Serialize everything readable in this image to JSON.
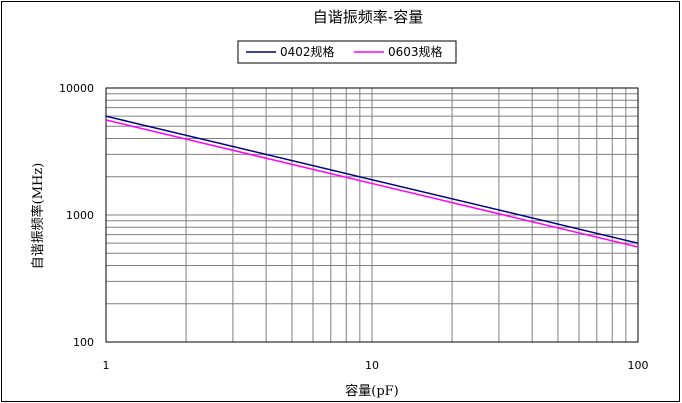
{
  "chart_data": {
    "type": "line",
    "title": "自谐振频率-容量",
    "xlabel": "容量(pF)",
    "ylabel": "自谐振频率(MHz)",
    "x_scale": "log",
    "y_scale": "log",
    "xlim": [
      1,
      100
    ],
    "ylim": [
      100,
      10000
    ],
    "x_ticks": [
      "1",
      "10",
      "100"
    ],
    "y_ticks": [
      "10000",
      "1000",
      "100"
    ],
    "grid": true,
    "legend_position": "top",
    "series": [
      {
        "name": "0402规格",
        "color": "#000080",
        "x": [
          1,
          100
        ],
        "y": [
          6000,
          600
        ]
      },
      {
        "name": "0603规格",
        "color": "#ff00ff",
        "x": [
          1,
          100
        ],
        "y": [
          5600,
          560
        ]
      }
    ]
  }
}
